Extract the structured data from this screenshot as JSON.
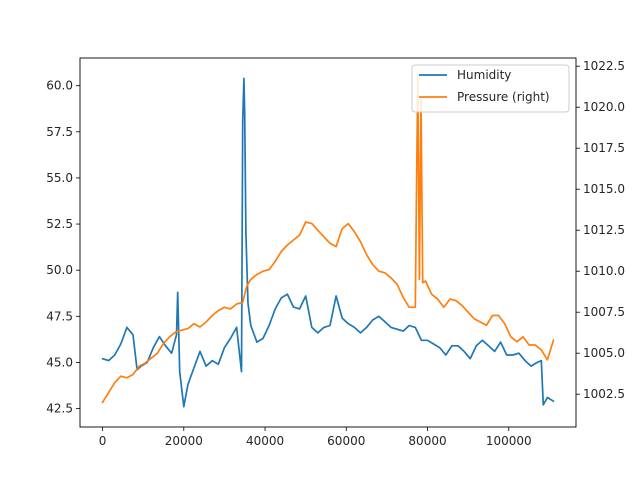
{
  "chart_data": {
    "type": "line",
    "title": "",
    "xlabel": "",
    "ylabel": "",
    "y2label": "",
    "xlim": [
      -5550,
      116550
    ],
    "ylim": [
      41.5,
      61.5
    ],
    "y2lim": [
      1000.5,
      1023.0
    ],
    "x_ticks": [
      0,
      20000,
      40000,
      60000,
      80000,
      100000
    ],
    "x_tick_labels": [
      "0",
      "20000",
      "40000",
      "60000",
      "80000",
      "100000"
    ],
    "y_ticks": [
      42.5,
      45.0,
      47.5,
      50.0,
      52.5,
      55.0,
      57.5,
      60.0
    ],
    "y_tick_labels": [
      "42.5",
      "45.0",
      "47.5",
      "50.0",
      "52.5",
      "55.0",
      "57.5",
      "60.0"
    ],
    "y2_ticks": [
      1002.5,
      1005.0,
      1007.5,
      1010.0,
      1012.5,
      1015.0,
      1017.5,
      1020.0,
      1022.5
    ],
    "y2_tick_labels": [
      "1002.5",
      "1005.0",
      "1007.5",
      "1010.0",
      "1012.5",
      "1015.0",
      "1017.5",
      "1020.0",
      "1022.5"
    ],
    "grid": false,
    "legend_position": "top-right",
    "series": [
      {
        "name": "Humidity",
        "axis": "left",
        "color": "#1f77b4",
        "x": [
          0,
          1500,
          3000,
          4500,
          6000,
          7500,
          8500,
          9500,
          11000,
          12500,
          14000,
          15500,
          17000,
          18200,
          18500,
          19000,
          20000,
          21000,
          22500,
          24000,
          25500,
          27000,
          28500,
          30000,
          31500,
          33000,
          34200,
          34500,
          34800,
          35000,
          35300,
          35800,
          36500,
          38000,
          39500,
          41000,
          42500,
          44000,
          45500,
          47000,
          48500,
          50000,
          51500,
          53000,
          54500,
          56000,
          57500,
          59000,
          60500,
          62000,
          63500,
          65000,
          66500,
          68000,
          69500,
          71000,
          72500,
          74000,
          75500,
          77000,
          78500,
          80000,
          81500,
          83000,
          84500,
          86000,
          87500,
          89000,
          90500,
          92000,
          93500,
          95000,
          96500,
          98000,
          99500,
          101000,
          102500,
          104000,
          105500,
          107000,
          108000,
          108500,
          109500,
          111000
        ],
        "y": [
          45.2,
          45.1,
          45.4,
          46.0,
          46.9,
          46.5,
          44.6,
          44.8,
          45.0,
          45.8,
          46.4,
          45.9,
          45.5,
          46.5,
          48.8,
          44.5,
          42.6,
          43.8,
          44.7,
          45.6,
          44.8,
          45.1,
          44.9,
          45.8,
          46.3,
          46.9,
          44.5,
          58.0,
          60.4,
          58.5,
          52.0,
          48.2,
          47.0,
          46.1,
          46.3,
          47.0,
          47.9,
          48.5,
          48.7,
          48.0,
          47.9,
          48.6,
          46.9,
          46.6,
          46.9,
          47.0,
          48.6,
          47.4,
          47.1,
          46.9,
          46.6,
          46.9,
          47.3,
          47.5,
          47.2,
          46.9,
          46.8,
          46.7,
          47.0,
          46.9,
          46.2,
          46.2,
          46.0,
          45.8,
          45.4,
          45.9,
          45.9,
          45.6,
          45.2,
          45.9,
          46.2,
          45.9,
          45.6,
          46.1,
          45.4,
          45.4,
          45.5,
          45.1,
          44.8,
          45.0,
          45.1,
          42.7,
          43.1,
          42.9
        ]
      },
      {
        "name": "Pressure (right)",
        "axis": "right",
        "color": "#ff7f0e",
        "x": [
          0,
          1500,
          3000,
          4500,
          6000,
          7500,
          9000,
          10500,
          12000,
          13500,
          15000,
          16500,
          18000,
          19500,
          21000,
          22500,
          24000,
          25500,
          27000,
          28500,
          30000,
          31500,
          33000,
          34500,
          35500,
          36500,
          38000,
          39500,
          41000,
          42500,
          44000,
          45500,
          47000,
          48500,
          50000,
          51500,
          53000,
          54500,
          56000,
          57500,
          59000,
          60500,
          62000,
          63500,
          65000,
          66500,
          68000,
          69500,
          71000,
          72500,
          74000,
          75500,
          77000,
          77300,
          77600,
          78000,
          78400,
          78800,
          79500,
          81000,
          82500,
          84000,
          85500,
          87000,
          88500,
          90000,
          91500,
          93000,
          94500,
          96000,
          97500,
          99000,
          100500,
          102000,
          103500,
          105000,
          106500,
          108000,
          109500,
          111000
        ],
        "y": [
          1002.0,
          1002.6,
          1003.2,
          1003.6,
          1003.5,
          1003.7,
          1004.2,
          1004.4,
          1004.7,
          1005.0,
          1005.6,
          1006.0,
          1006.3,
          1006.4,
          1006.5,
          1006.8,
          1006.6,
          1006.9,
          1007.3,
          1007.6,
          1007.8,
          1007.7,
          1008.0,
          1008.1,
          1009.1,
          1009.5,
          1009.8,
          1010.0,
          1010.1,
          1010.6,
          1011.2,
          1011.6,
          1011.9,
          1012.2,
          1013.0,
          1012.9,
          1012.5,
          1012.1,
          1011.7,
          1011.5,
          1012.6,
          1012.9,
          1012.4,
          1011.8,
          1011.0,
          1010.4,
          1010.0,
          1009.9,
          1009.6,
          1009.2,
          1008.4,
          1007.8,
          1007.8,
          1015.5,
          1022.0,
          1009.5,
          1020.5,
          1009.3,
          1009.4,
          1008.6,
          1008.3,
          1007.8,
          1008.3,
          1008.2,
          1007.9,
          1007.5,
          1007.1,
          1006.9,
          1006.7,
          1007.3,
          1007.3,
          1006.8,
          1006.0,
          1005.7,
          1006.0,
          1005.5,
          1005.5,
          1005.2,
          1004.6,
          1005.8
        ]
      }
    ]
  }
}
